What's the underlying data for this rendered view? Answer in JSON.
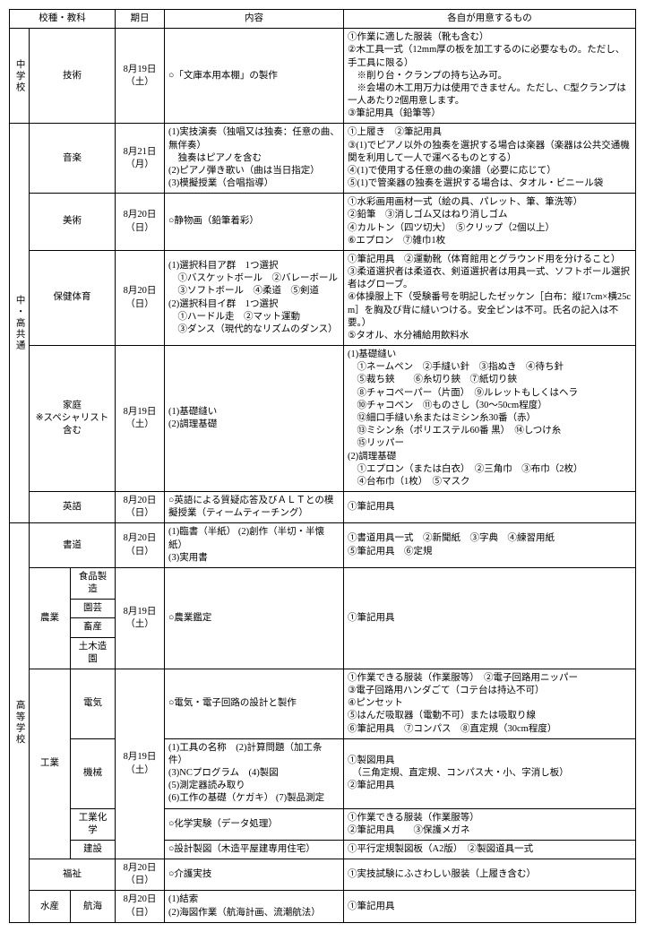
{
  "headers": {
    "category": "校種・教科",
    "date": "期日",
    "content": "内容",
    "prep": "各自が用意するもの"
  },
  "cats": {
    "jhs": "中学校",
    "common": "中・高共通",
    "hs": "高等学校"
  },
  "rows": {
    "tech": {
      "subject": "技術",
      "date": "8月19日\n（土）",
      "content": "○「文庫本用本棚」の製作",
      "prep": "①作業に適した服装（靴も含む）\n②木工具一式（12mm厚の板を加工するのに必要なもの。ただし、手工具に限る）\n　※削り台・クランプの持ち込み可。\n　※会場の木工用万力は使用できません。ただし、C型クランプは一人あたり2個用意します。\n③筆記用具（鉛筆等）"
    },
    "music": {
      "subject": "音楽",
      "date": "8月21日\n（月）",
      "content": "(1)実技演奏（独唱又は独奏：任意の曲、無伴奏）\n　独奏はピアノを含む\n(2)ピアノ弾き歌い（曲は当日指定）\n(3)模擬授業（合唱指導）",
      "prep": "①上履き　②筆記用具\n③(1)でピアノ以外の独奏を選択する場合は楽器（楽器は公共交通機関を利用して一人で運べるものとする）\n④(1)で使用する任意の曲の楽譜（必要に応じて）\n⑤(1)で管楽器の独奏を選択する場合は、タオル・ビニール袋"
    },
    "art": {
      "subject": "美術",
      "date": "8月20日\n（日）",
      "content": "○静物画（鉛筆着彩）",
      "prep": "①水彩画用画材一式（絵の具、パレット、筆、筆洗等）\n②鉛筆　③消しゴム又はねり消しゴム\n④カルトン（四ツ切大）　⑤クリップ（2個以上）\n⑥エプロン　⑦雑巾1枚"
    },
    "pe": {
      "subject": "保健体育",
      "date": "8月20日\n（日）",
      "content": "(1)選択科目ア群　1つ選択\n　①バスケットボール　②バレーボール\n　③ソフトボール　④柔道　⑤剣道\n(2)選択科目イ群　1つ選択\n　①ハードル走　②マット運動\n　③ダンス（現代的なリズムのダンス）",
      "prep": "①筆記用具　②運動靴（体育館用とグラウンド用を分けること）　③柔道選択者は柔道衣、剣道選択者は用具一式、ソフトボール選択者はグローブ。\n④体操服上下（受験番号を明記したゼッケン［白布：縦17cm×横25cm］を胸及び背に縫いつける。安全ピンは不可。氏名の記入は不要。）\n⑤タオル、水分補給用飲料水"
    },
    "home": {
      "subject": "家庭\n※スペシャリスト\n含む",
      "date": "8月19日\n（土）",
      "content": "(1)基礎縫い\n(2)調理基礎",
      "prep": "(1)基礎縫い\n　①ネームペン　②手縫い針　③指ぬき　④待ち針\n　⑤裁ち鋏　　⑥糸切り鋏　⑦紙切り鋏\n　⑧チャコペーパー（片面）　⑨ルレットもしくはヘラ\n　⑩チャコペン　⑪ものさし（30～50cm程度）\n　⑫細口手縫い糸またはミシン糸30番（赤）\n　⑬ミシン糸（ポリエステル60番 黒）　⑭しつけ糸\n　⑮リッパー\n(2)調理基礎\n　①エプロン（または白衣）　②三角巾　③布巾（2枚）\n　④台布巾（1枚）　⑤マスク"
    },
    "eng": {
      "subject": "英語",
      "date": "8月20日\n（日）",
      "content": "○英語による質疑応答及びＡＬＴとの模擬授業（ティームティーチング）",
      "prep": "①筆記用具"
    },
    "calli": {
      "subject": "書道",
      "date": "8月20日\n（日）",
      "content": "(1)臨書（半紙） (2)創作（半切・半懐紙）\n(3)実用書",
      "prep": "①書道用具一式　②新聞紙　③字典　④練習用紙\n⑤筆記用具　⑥定規"
    },
    "agri": {
      "subject": "農業",
      "sub1": "食品製造",
      "sub2": "園芸",
      "sub3": "畜産",
      "sub4": "土木造園",
      "date": "8月19日\n（土）",
      "content": "○農業鑑定",
      "prep": "①筆記用具"
    },
    "ind": {
      "subject": "工業",
      "date": "8月19日\n（土）",
      "elec": {
        "sub": "電気",
        "content": "○電気・電子回路の設計と製作",
        "prep": "①作業できる服装（作業服等）　②電子回路用ニッパー\n③電子回路用ハンダごて（コテ台は持込不可）\n④ピンセット\n⑤はんだ吸取器（電動不可）または吸取り線\n⑥筆記用具　⑦コンパス　⑧直定規（30cm程度）"
      },
      "mech": {
        "sub": "機械",
        "content": "(1)工具の名称　(2)計算問題（加工条件）\n(3)NCプログラム　(4)製図\n(5)測定器読み取り\n(6)工作の基礎（ケガキ） (7)製品測定",
        "prep": "①製図用具\n　（三角定規、直定規、コンパス大・小、字消し板）\n②筆記用具"
      },
      "chem": {
        "sub": "工業化学",
        "content": "○化学実験（データ処理）",
        "prep": "①作業できる服装（作業服等）\n②筆記用具　　③保護メガネ"
      },
      "const": {
        "sub": "建設",
        "content": "○設計製図（木造平屋建専用住宅）",
        "prep": "①平行定規製図板（A2版）　②製図道具一式"
      }
    },
    "welfare": {
      "subject": "福祉",
      "date": "8月20日\n（日）",
      "content": "○介護実技",
      "prep": "①実技試験にふさわしい服装（上履き含む）"
    },
    "fishery": {
      "subject": "水産",
      "sub": "航海",
      "date": "8月20日\n（日）",
      "content": "(1)結索\n(2)海図作業（航海計画、流潮航法）",
      "prep": "①筆記用具"
    }
  }
}
